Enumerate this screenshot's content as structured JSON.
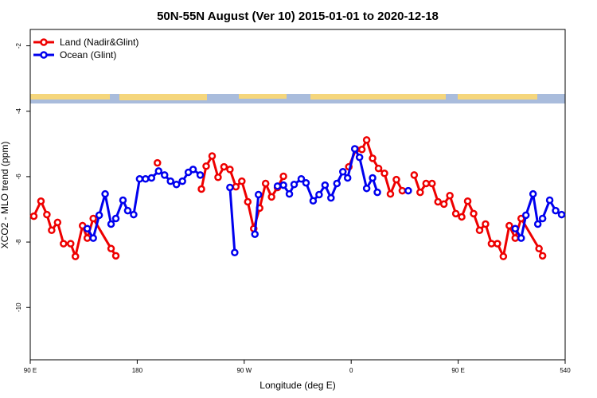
{
  "chart_data": {
    "type": "line",
    "title": "50N-55N August (Ver 10)   2015-01-01 to 2020-12-18",
    "x_label": "Longitude (deg E)",
    "y_label": "XCO2 - MLO trend (ppm)",
    "xlim": [
      90,
      540
    ],
    "xticks": [
      {
        "value": 90,
        "label": "90 E"
      },
      180,
      {
        "value": 270,
        "label": "90 W"
      },
      {
        "value": 360,
        "label": "0"
      },
      {
        "value": 450,
        "label": "90 E"
      },
      540
    ],
    "ylim": [
      -11.6,
      -1.5
    ],
    "yticks": [
      -2,
      -4,
      -6,
      -8,
      -10
    ],
    "legend": "top-left",
    "series": [
      {
        "name": "Land (Nadir&Glint)",
        "color": "#ee0000",
        "x": [
          93,
          99,
          104,
          108,
          113,
          118,
          124,
          128,
          134,
          138,
          143,
          158,
          162,
          162,
          197,
          197,
          234,
          238,
          243,
          248,
          253,
          258,
          263,
          268,
          273,
          278,
          283,
          288,
          293,
          298,
          303,
          303,
          358,
          364,
          369,
          373,
          378,
          383,
          388,
          393,
          398,
          403,
          403,
          413,
          418,
          423,
          428,
          433,
          438,
          443,
          448,
          453,
          458,
          463,
          468,
          473,
          478,
          483,
          488,
          493,
          498,
          503,
          518,
          521
        ],
        "values": [
          -7.21,
          -6.75,
          -7.16,
          -7.64,
          -7.4,
          -8.05,
          -8.05,
          -8.44,
          -7.5,
          -7.88,
          -7.28,
          -8.2,
          -8.42,
          null,
          -5.58,
          null,
          -6.38,
          -5.68,
          -5.37,
          -6.02,
          -5.7,
          -5.78,
          -6.31,
          -6.14,
          -6.77,
          -7.59,
          -6.96,
          -6.21,
          -6.62,
          -6.33,
          -5.99,
          null,
          -5.7,
          -5.17,
          -5.17,
          -4.88,
          -5.44,
          -5.75,
          -5.9,
          -6.53,
          -6.09,
          -6.43,
          null,
          -5.95,
          -6.48,
          -6.21,
          -6.21,
          -6.77,
          -6.84,
          -6.58,
          -7.13,
          -7.23,
          -6.75,
          -7.13,
          -7.64,
          -7.45,
          -8.05,
          -8.05,
          -8.44,
          -7.5,
          -7.88,
          -7.28,
          -8.2,
          -8.42
        ]
      },
      {
        "name": "Ocean (Glint)",
        "color": "#0000ee",
        "x": [
          138,
          143,
          148,
          153,
          158,
          162,
          168,
          172,
          177,
          182,
          187,
          192,
          198,
          203,
          208,
          213,
          218,
          223,
          227,
          233,
          233,
          258,
          262,
          262,
          279,
          282,
          282,
          298,
          303,
          308,
          312,
          318,
          322,
          328,
          333,
          338,
          343,
          348,
          353,
          357,
          363,
          367,
          373,
          378,
          382,
          382,
          408,
          408,
          498,
          503,
          507,
          513,
          517,
          521,
          527,
          532,
          537
        ],
        "values": [
          -7.59,
          -7.88,
          -7.18,
          -6.53,
          -7.45,
          -7.28,
          -6.72,
          -7.04,
          -7.16,
          -6.07,
          -6.07,
          -6.04,
          -5.83,
          -5.95,
          -6.14,
          -6.24,
          -6.14,
          -5.87,
          -5.78,
          -5.95,
          null,
          -6.33,
          -8.32,
          null,
          -7.76,
          -6.55,
          null,
          -6.29,
          -6.26,
          -6.53,
          -6.24,
          -6.07,
          -6.19,
          -6.74,
          -6.55,
          -6.26,
          -6.65,
          -6.21,
          -5.85,
          -6.04,
          -5.15,
          -5.41,
          -6.36,
          -6.04,
          -6.48,
          null,
          -6.43,
          null,
          -7.59,
          -7.88,
          -7.18,
          -6.53,
          -7.45,
          -7.28,
          -6.72,
          -7.04,
          -7.16
        ]
      }
    ]
  }
}
